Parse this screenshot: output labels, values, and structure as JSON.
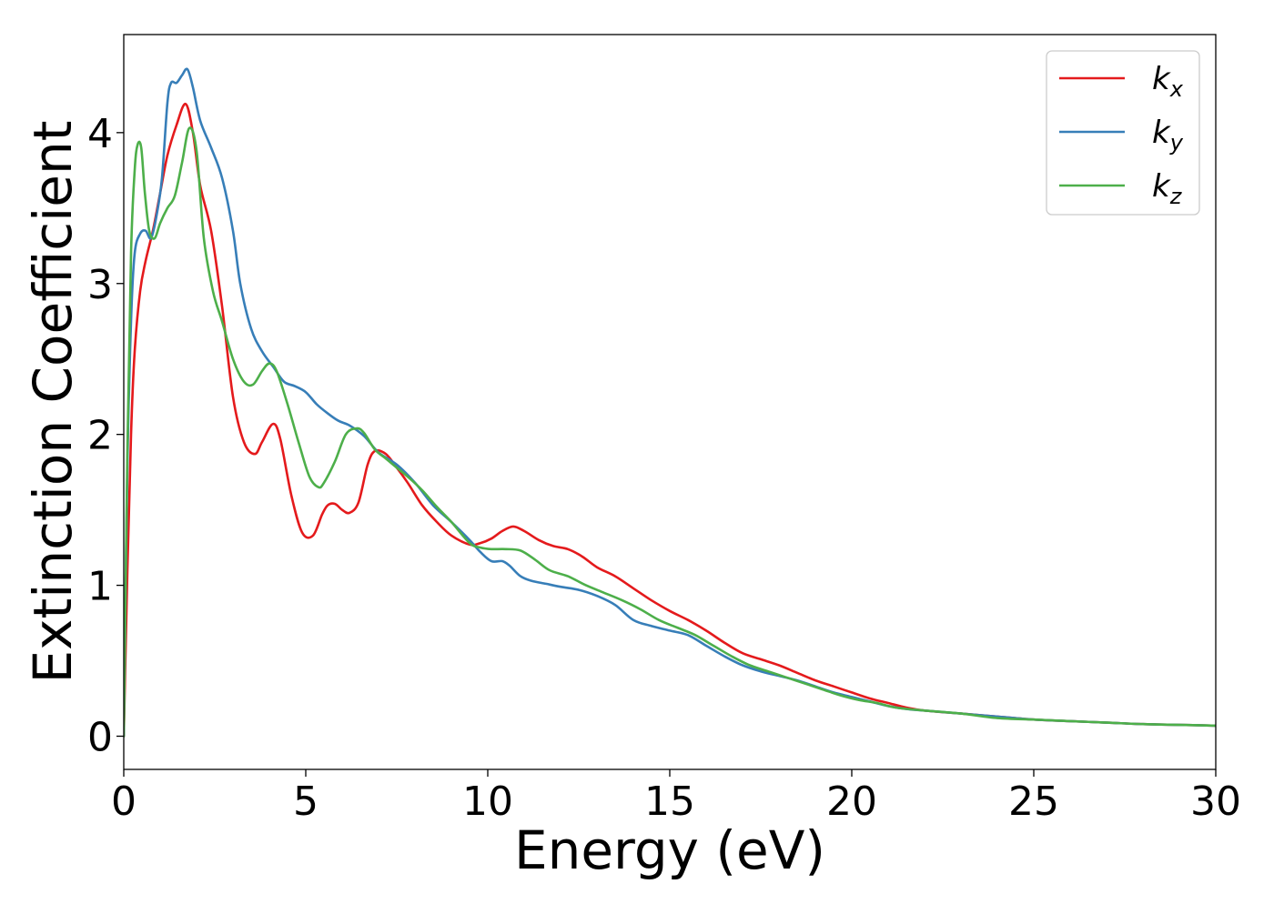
{
  "chart_data": {
    "type": "line",
    "title": "",
    "xlabel": "Energy (eV)",
    "ylabel": "Extinction Coefficient",
    "xlim": [
      0,
      30
    ],
    "ylim": [
      -0.22,
      4.65
    ],
    "xticks": [
      0,
      5,
      10,
      15,
      20,
      25,
      30
    ],
    "xtick_labels": [
      "0",
      "5",
      "10",
      "15",
      "20",
      "25",
      "30"
    ],
    "yticks": [
      0,
      1,
      2,
      3,
      4
    ],
    "ytick_labels": [
      "0",
      "1",
      "2",
      "3",
      "4"
    ],
    "grid": false,
    "legend_position": "top-right",
    "series": [
      {
        "name": "k",
        "subscript": "x",
        "color": "#e41a1c",
        "x": [
          0,
          0.1,
          0.2,
          0.3,
          0.45,
          0.6,
          0.8,
          1.0,
          1.2,
          1.45,
          1.7,
          1.9,
          2.1,
          2.4,
          2.7,
          3.0,
          3.3,
          3.6,
          3.8,
          4.1,
          4.3,
          4.6,
          4.9,
          5.2,
          5.45,
          5.6,
          5.8,
          6.0,
          6.2,
          6.45,
          6.7,
          6.9,
          7.2,
          7.5,
          7.8,
          8.2,
          8.6,
          9.0,
          9.5,
          9.8,
          10.1,
          10.4,
          10.7,
          11.0,
          11.4,
          11.8,
          12.2,
          12.6,
          13.0,
          13.5,
          14.0,
          14.5,
          15.0,
          15.5,
          16.0,
          16.5,
          17.0,
          17.5,
          18.0,
          18.5,
          19.0,
          19.5,
          20.0,
          20.5,
          21.0,
          21.5,
          22.0,
          23.0,
          24.0,
          25.0,
          26.0,
          27.0,
          28.0,
          29.0,
          30.0
        ],
        "y": [
          0,
          1.1,
          2.0,
          2.55,
          2.95,
          3.15,
          3.35,
          3.6,
          3.85,
          4.05,
          4.19,
          4.0,
          3.65,
          3.35,
          2.85,
          2.25,
          1.95,
          1.87,
          1.95,
          2.07,
          1.97,
          1.6,
          1.35,
          1.33,
          1.47,
          1.53,
          1.54,
          1.5,
          1.48,
          1.55,
          1.8,
          1.89,
          1.87,
          1.78,
          1.68,
          1.53,
          1.42,
          1.33,
          1.27,
          1.28,
          1.31,
          1.36,
          1.39,
          1.36,
          1.3,
          1.26,
          1.24,
          1.19,
          1.12,
          1.06,
          0.98,
          0.9,
          0.83,
          0.77,
          0.7,
          0.62,
          0.55,
          0.51,
          0.47,
          0.42,
          0.37,
          0.33,
          0.29,
          0.25,
          0.22,
          0.19,
          0.17,
          0.15,
          0.13,
          0.11,
          0.1,
          0.09,
          0.08,
          0.075,
          0.07
        ]
      },
      {
        "name": "k",
        "subscript": "y",
        "color": "#377eb8",
        "x": [
          0,
          0.1,
          0.2,
          0.3,
          0.45,
          0.6,
          0.75,
          0.9,
          1.05,
          1.2,
          1.3,
          1.45,
          1.6,
          1.75,
          1.9,
          2.1,
          2.4,
          2.7,
          3.0,
          3.2,
          3.5,
          3.8,
          4.1,
          4.4,
          4.7,
          5.0,
          5.3,
          5.6,
          5.9,
          6.2,
          6.6,
          7.0,
          7.5,
          8.0,
          8.5,
          9.0,
          9.5,
          9.8,
          10.1,
          10.4,
          10.6,
          10.9,
          11.2,
          11.6,
          12.0,
          12.5,
          13.0,
          13.5,
          14.0,
          14.5,
          15.0,
          15.5,
          16.0,
          16.5,
          17.0,
          17.5,
          18.0,
          18.5,
          19.0,
          19.5,
          20.0,
          20.5,
          21.0,
          21.5,
          22.0,
          23.0,
          24.0,
          25.0,
          26.0,
          27.0,
          28.0,
          29.0,
          30.0
        ],
        "y": [
          0,
          1.8,
          2.75,
          3.2,
          3.33,
          3.35,
          3.3,
          3.45,
          3.7,
          4.2,
          4.33,
          4.33,
          4.38,
          4.42,
          4.3,
          4.08,
          3.9,
          3.7,
          3.35,
          3.0,
          2.7,
          2.55,
          2.45,
          2.35,
          2.32,
          2.28,
          2.2,
          2.14,
          2.09,
          2.06,
          1.99,
          1.88,
          1.8,
          1.68,
          1.53,
          1.42,
          1.3,
          1.22,
          1.16,
          1.16,
          1.13,
          1.06,
          1.03,
          1.01,
          0.99,
          0.97,
          0.93,
          0.87,
          0.77,
          0.73,
          0.7,
          0.67,
          0.6,
          0.53,
          0.47,
          0.43,
          0.4,
          0.37,
          0.33,
          0.29,
          0.26,
          0.23,
          0.2,
          0.18,
          0.17,
          0.15,
          0.13,
          0.11,
          0.1,
          0.09,
          0.08,
          0.075,
          0.07
        ]
      },
      {
        "name": "k",
        "subscript": "z",
        "color": "#4daf4a",
        "x": [
          0,
          0.1,
          0.2,
          0.3,
          0.38,
          0.48,
          0.58,
          0.7,
          0.85,
          1.0,
          1.2,
          1.4,
          1.6,
          1.8,
          2.0,
          2.2,
          2.45,
          2.7,
          3.0,
          3.3,
          3.55,
          3.8,
          4.0,
          4.2,
          4.5,
          4.8,
          5.1,
          5.35,
          5.5,
          5.8,
          6.1,
          6.4,
          6.6,
          6.9,
          7.2,
          7.5,
          7.8,
          8.2,
          8.6,
          9.0,
          9.5,
          9.8,
          10.1,
          10.5,
          10.9,
          11.3,
          11.7,
          12.2,
          12.7,
          13.2,
          13.7,
          14.2,
          14.7,
          15.2,
          15.7,
          16.2,
          16.7,
          17.2,
          17.7,
          18.2,
          18.7,
          19.2,
          19.7,
          20.2,
          20.7,
          21.2,
          22.0,
          23.0,
          24.0,
          25.0,
          26.0,
          27.0,
          28.0,
          29.0,
          30.0
        ],
        "y": [
          0,
          1.9,
          3.2,
          3.75,
          3.92,
          3.9,
          3.6,
          3.35,
          3.3,
          3.4,
          3.5,
          3.58,
          3.8,
          4.03,
          3.88,
          3.3,
          2.95,
          2.75,
          2.5,
          2.35,
          2.33,
          2.42,
          2.47,
          2.42,
          2.2,
          1.95,
          1.72,
          1.65,
          1.68,
          1.82,
          2.0,
          2.04,
          2.01,
          1.9,
          1.84,
          1.78,
          1.72,
          1.63,
          1.52,
          1.42,
          1.28,
          1.25,
          1.24,
          1.24,
          1.23,
          1.17,
          1.1,
          1.06,
          1.0,
          0.95,
          0.9,
          0.84,
          0.77,
          0.72,
          0.67,
          0.6,
          0.53,
          0.47,
          0.43,
          0.39,
          0.35,
          0.31,
          0.27,
          0.24,
          0.22,
          0.19,
          0.17,
          0.15,
          0.12,
          0.11,
          0.1,
          0.09,
          0.08,
          0.075,
          0.07
        ]
      }
    ]
  }
}
